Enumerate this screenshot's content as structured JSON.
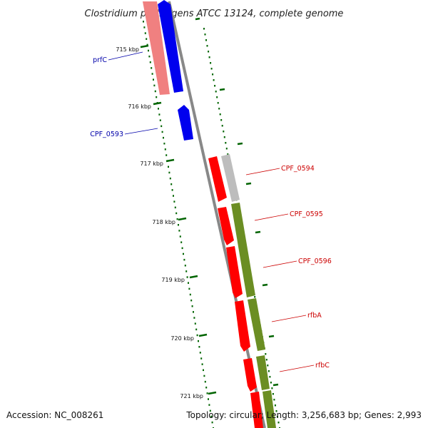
{
  "title": "Clostridium perfringens ATCC 13124, complete genome",
  "footer": {
    "accession": "Accession: NC_008261",
    "topology": "Topology: circular; Length: 3,256,683 bp; Genes: 2,993"
  },
  "colors": {
    "blue_gene": "#0000ee",
    "pink_gene": "#f08080",
    "red_gene": "#ff0000",
    "gray_gene": "#bdbdbd",
    "olive_gene": "#6b8e23",
    "backbone": "#888888",
    "ticks": "#006400",
    "blue_label": "#0000aa",
    "red_label": "#cc0000"
  },
  "scale": {
    "ticks": [
      "715 kbp",
      "716 kbp",
      "717 kbp",
      "718 kbp",
      "719 kbp",
      "720 kbp",
      "721 kbp"
    ]
  },
  "labels": [
    "prfC",
    "CPF_0593",
    "CPF_0594",
    "CPF_0595",
    "CPF_0596",
    "rfbA",
    "rfbC"
  ]
}
